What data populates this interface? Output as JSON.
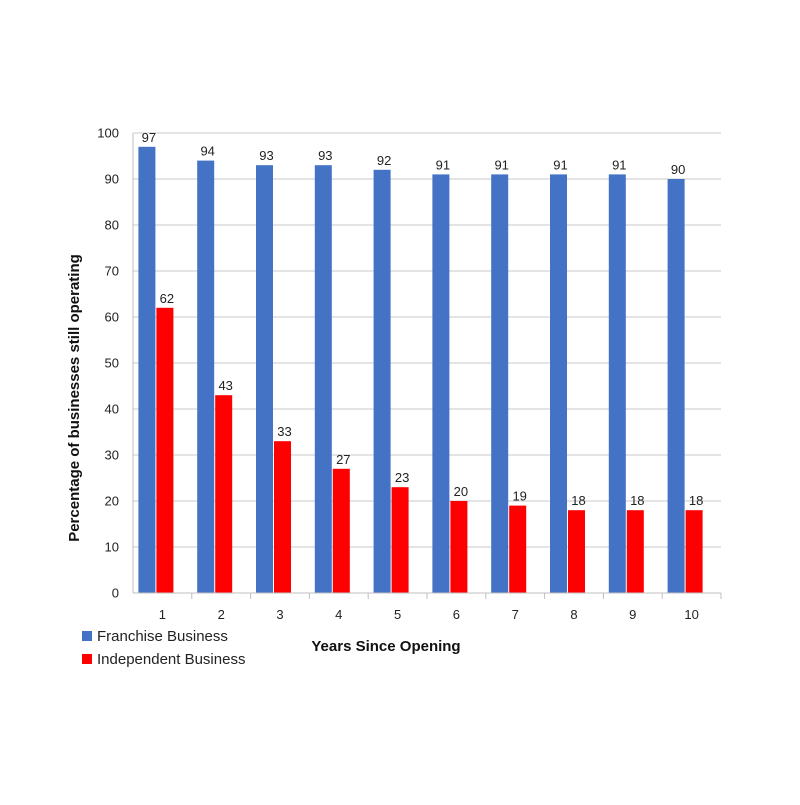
{
  "chart_data": {
    "type": "bar",
    "categories": [
      "1",
      "2",
      "3",
      "4",
      "5",
      "6",
      "7",
      "8",
      "9",
      "10"
    ],
    "series": [
      {
        "name": "Franchise Business",
        "values": [
          97,
          94,
          93,
          93,
          92,
          91,
          91,
          91,
          91,
          90
        ],
        "color": "#4472C4"
      },
      {
        "name": "Independent Business",
        "values": [
          62,
          43,
          33,
          27,
          23,
          20,
          19,
          18,
          18,
          18
        ],
        "color": "#FF0000"
      }
    ],
    "xlabel": "Years Since Opening",
    "ylabel": "Percentage of businesses still operating",
    "ylim": [
      0,
      100
    ],
    "yticks": [
      0,
      10,
      20,
      30,
      40,
      50,
      60,
      70,
      80,
      90,
      100
    ],
    "grid": true,
    "legend_position": "bottom-left",
    "data_labels": true
  }
}
